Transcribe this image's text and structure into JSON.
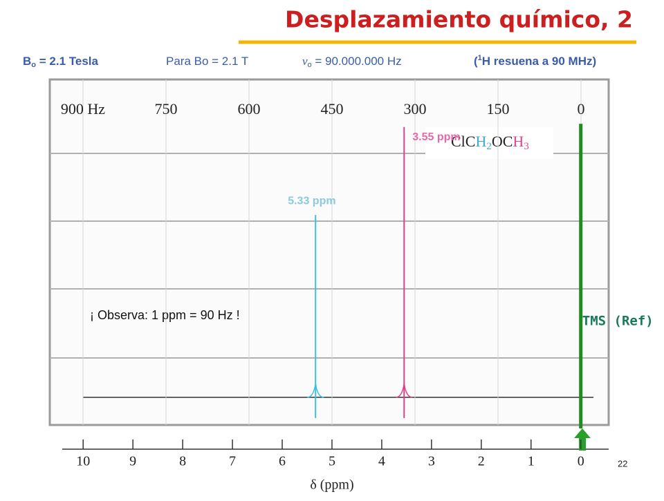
{
  "slide": {
    "title": "Desplazamiento químico, 2",
    "field": "B",
    "field_sub": "o",
    "field_value": " = 2.1 Tesla",
    "para": "Para Bo = 2.1 T",
    "nu": "ν",
    "nu_sub": "o",
    "freq": " =  90.000.000 Hz",
    "res_open": "(",
    "res_sup": "1",
    "res_text": "H resuena a 90 MHz)",
    "note": "¡ Observa: 1 ppm = 90 Hz !",
    "page": "22"
  },
  "chart_data": {
    "type": "spectrum",
    "xlabel": "δ (ppm)",
    "xlim": [
      10.67,
      -0.56
    ],
    "xticks": [
      10,
      9,
      8,
      7,
      6,
      5,
      4,
      3,
      2,
      1,
      0
    ],
    "x2lim": [
      960,
      -50
    ],
    "x2ticks": [
      {
        "value": 900,
        "label": "900 Hz"
      },
      750,
      600,
      450,
      300,
      150,
      0
    ],
    "ylim": [
      0,
      100
    ],
    "compound": [
      {
        "text": "ClC",
        "color": "#222222"
      },
      {
        "text": "H",
        "color": "#3fa9d0"
      },
      {
        "text": "2",
        "color": "#3fa9d0",
        "sub": true
      },
      {
        "text": "OC",
        "color": "#222222"
      },
      {
        "text": "H",
        "color": "#e0458f"
      },
      {
        "text": "3",
        "color": "#e0458f",
        "sub": true
      }
    ],
    "series": [
      {
        "name": "5.33 ppm",
        "color": "#3cc0e0",
        "label_color": "#8ccadb",
        "x": [
          5.33
        ],
        "values": [
          58
        ]
      },
      {
        "name": "3.55 ppm",
        "color": "#e0408a",
        "label_color": "#e868a8",
        "x": [
          3.55
        ],
        "values": [
          86
        ]
      },
      {
        "name": "TMS (Ref)",
        "color": "#1e8c1e",
        "label_color": "#1a7a5e",
        "x": [
          0
        ],
        "values": [
          87
        ]
      }
    ]
  }
}
